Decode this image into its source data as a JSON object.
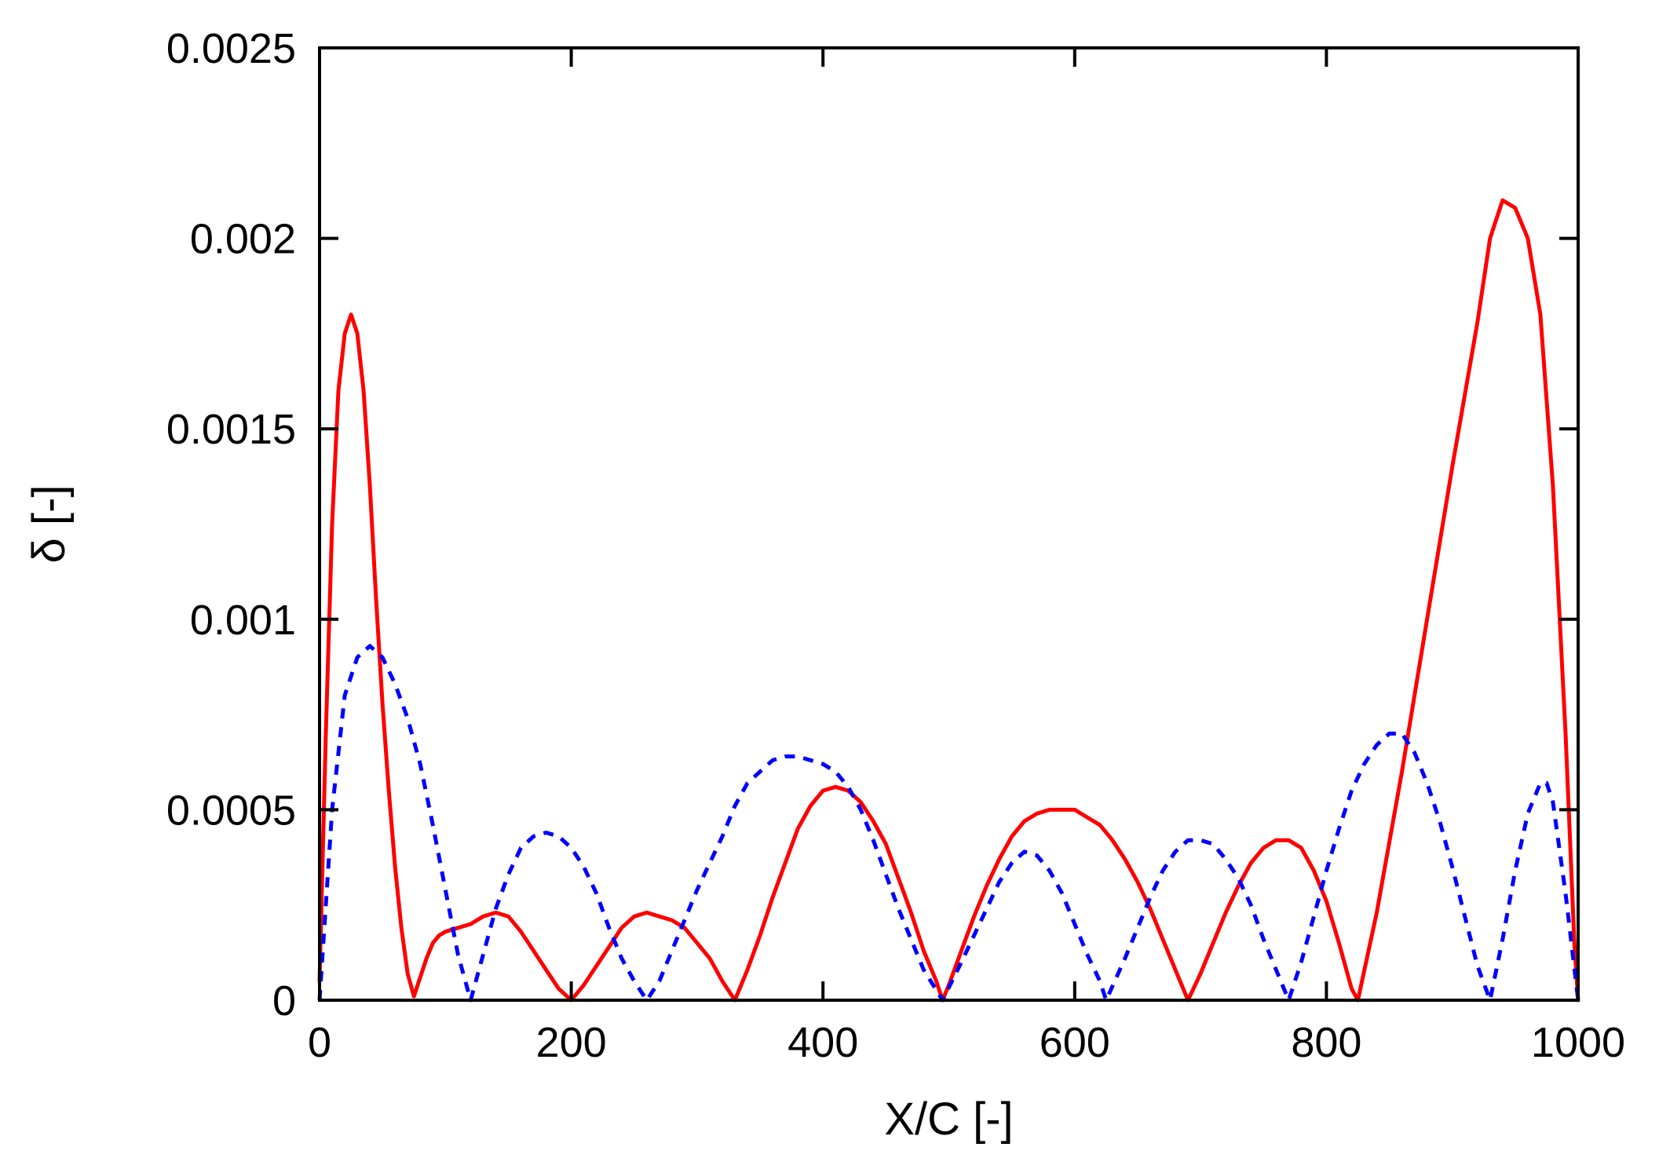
{
  "chart_data": {
    "type": "line",
    "title": "",
    "xlabel": "X/C [-]",
    "ylabel": "δ [-]",
    "xlim": [
      0,
      1000
    ],
    "ylim": [
      0,
      0.0025
    ],
    "x_ticks": [
      0,
      200,
      400,
      600,
      800,
      1000
    ],
    "x_tick_labels": [
      "0",
      "200",
      "400",
      "600",
      "800",
      "1000"
    ],
    "y_ticks": [
      0,
      0.0005,
      0.001,
      0.0015,
      0.002,
      0.0025
    ],
    "y_tick_labels": [
      "0",
      "0.0005",
      "0.001",
      "0.0015",
      "0.002",
      "0.0025"
    ],
    "grid": false,
    "legend": "none",
    "series": [
      {
        "color": "#ff0000",
        "style": "solid",
        "points": [
          [
            0,
            5e-05
          ],
          [
            5,
            0.0007
          ],
          [
            10,
            0.00125
          ],
          [
            15,
            0.0016
          ],
          [
            20,
            0.00175
          ],
          [
            25,
            0.0018
          ],
          [
            30,
            0.00175
          ],
          [
            35,
            0.0016
          ],
          [
            40,
            0.00135
          ],
          [
            45,
            0.00105
          ],
          [
            50,
            0.00078
          ],
          [
            55,
            0.00055
          ],
          [
            60,
            0.00035
          ],
          [
            65,
            0.00019
          ],
          [
            70,
            7e-05
          ],
          [
            75,
            1e-05
          ],
          [
            80,
            6e-05
          ],
          [
            85,
            0.00011
          ],
          [
            90,
            0.00015
          ],
          [
            95,
            0.00017
          ],
          [
            100,
            0.00018
          ],
          [
            110,
            0.00019
          ],
          [
            120,
            0.0002
          ],
          [
            130,
            0.00022
          ],
          [
            140,
            0.00023
          ],
          [
            150,
            0.00022
          ],
          [
            160,
            0.00018
          ],
          [
            170,
            0.00013
          ],
          [
            180,
            8e-05
          ],
          [
            190,
            3e-05
          ],
          [
            200,
            0.0
          ],
          [
            210,
            4e-05
          ],
          [
            220,
            9e-05
          ],
          [
            230,
            0.00014
          ],
          [
            240,
            0.00019
          ],
          [
            250,
            0.00022
          ],
          [
            260,
            0.00023
          ],
          [
            270,
            0.00022
          ],
          [
            280,
            0.00021
          ],
          [
            290,
            0.00019
          ],
          [
            300,
            0.00015
          ],
          [
            310,
            0.00011
          ],
          [
            320,
            5e-05
          ],
          [
            330,
            0.0
          ],
          [
            340,
            8e-05
          ],
          [
            350,
            0.00017
          ],
          [
            360,
            0.00027
          ],
          [
            370,
            0.00036
          ],
          [
            380,
            0.00045
          ],
          [
            390,
            0.00051
          ],
          [
            400,
            0.00055
          ],
          [
            410,
            0.00056
          ],
          [
            420,
            0.00055
          ],
          [
            430,
            0.00052
          ],
          [
            440,
            0.00047
          ],
          [
            450,
            0.00041
          ],
          [
            460,
            0.00032
          ],
          [
            470,
            0.00023
          ],
          [
            480,
            0.00013
          ],
          [
            490,
            5e-05
          ],
          [
            495,
            0.0
          ],
          [
            500,
            4e-05
          ],
          [
            510,
            0.00013
          ],
          [
            520,
            0.00022
          ],
          [
            530,
            0.0003
          ],
          [
            540,
            0.00037
          ],
          [
            550,
            0.00043
          ],
          [
            560,
            0.00047
          ],
          [
            570,
            0.00049
          ],
          [
            580,
            0.0005
          ],
          [
            590,
            0.0005
          ],
          [
            600,
            0.0005
          ],
          [
            610,
            0.00048
          ],
          [
            620,
            0.00046
          ],
          [
            630,
            0.00042
          ],
          [
            640,
            0.00037
          ],
          [
            650,
            0.00031
          ],
          [
            660,
            0.00024
          ],
          [
            670,
            0.00016
          ],
          [
            680,
            8e-05
          ],
          [
            690,
            0.0
          ],
          [
            700,
            7e-05
          ],
          [
            710,
            0.00015
          ],
          [
            720,
            0.00023
          ],
          [
            730,
            0.0003
          ],
          [
            740,
            0.00036
          ],
          [
            750,
            0.0004
          ],
          [
            760,
            0.00042
          ],
          [
            770,
            0.00042
          ],
          [
            780,
            0.0004
          ],
          [
            790,
            0.00034
          ],
          [
            800,
            0.00026
          ],
          [
            810,
            0.00015
          ],
          [
            820,
            3e-05
          ],
          [
            825,
            0.0
          ],
          [
            840,
            0.00023
          ],
          [
            860,
            0.0006
          ],
          [
            880,
            0.001
          ],
          [
            900,
            0.0014
          ],
          [
            920,
            0.00178
          ],
          [
            930,
            0.002
          ],
          [
            940,
            0.0021
          ],
          [
            950,
            0.00208
          ],
          [
            960,
            0.002
          ],
          [
            970,
            0.0018
          ],
          [
            980,
            0.00135
          ],
          [
            990,
            0.0007
          ],
          [
            997,
            0.00015
          ],
          [
            1000,
            0.0
          ]
        ]
      },
      {
        "color": "#0000ff",
        "style": "dashed",
        "points": [
          [
            0,
            0.0
          ],
          [
            5,
            0.00025
          ],
          [
            10,
            0.0005
          ],
          [
            20,
            0.0008
          ],
          [
            30,
            0.0009
          ],
          [
            40,
            0.00093
          ],
          [
            50,
            0.0009
          ],
          [
            60,
            0.00083
          ],
          [
            70,
            0.00074
          ],
          [
            80,
            0.00062
          ],
          [
            90,
            0.00046
          ],
          [
            100,
            0.00029
          ],
          [
            110,
            0.00012
          ],
          [
            120,
            0.0
          ],
          [
            130,
            0.00012
          ],
          [
            140,
            0.00024
          ],
          [
            150,
            0.00033
          ],
          [
            160,
            0.0004
          ],
          [
            170,
            0.00043
          ],
          [
            180,
            0.00044
          ],
          [
            190,
            0.00043
          ],
          [
            200,
            0.0004
          ],
          [
            210,
            0.00035
          ],
          [
            220,
            0.00028
          ],
          [
            230,
            0.00019
          ],
          [
            240,
            0.00011
          ],
          [
            250,
            5e-05
          ],
          [
            260,
            0.0
          ],
          [
            270,
            5e-05
          ],
          [
            280,
            0.00013
          ],
          [
            290,
            0.00021
          ],
          [
            300,
            0.00029
          ],
          [
            310,
            0.00036
          ],
          [
            320,
            0.00043
          ],
          [
            330,
            0.00051
          ],
          [
            340,
            0.00057
          ],
          [
            350,
            0.0006
          ],
          [
            360,
            0.00063
          ],
          [
            370,
            0.00064
          ],
          [
            380,
            0.00064
          ],
          [
            390,
            0.00063
          ],
          [
            400,
            0.00062
          ],
          [
            410,
            0.0006
          ],
          [
            420,
            0.00056
          ],
          [
            430,
            0.0005
          ],
          [
            440,
            0.00042
          ],
          [
            450,
            0.00033
          ],
          [
            460,
            0.00024
          ],
          [
            470,
            0.00016
          ],
          [
            480,
            8e-05
          ],
          [
            495,
            0.0
          ],
          [
            510,
            0.0001
          ],
          [
            520,
            0.00017
          ],
          [
            530,
            0.00024
          ],
          [
            540,
            0.00031
          ],
          [
            550,
            0.00036
          ],
          [
            560,
            0.00039
          ],
          [
            570,
            0.00038
          ],
          [
            580,
            0.00034
          ],
          [
            590,
            0.00028
          ],
          [
            600,
            0.0002
          ],
          [
            610,
            0.00012
          ],
          [
            620,
            5e-05
          ],
          [
            625,
            0.0
          ],
          [
            640,
            0.00011
          ],
          [
            650,
            0.00019
          ],
          [
            660,
            0.00027
          ],
          [
            670,
            0.00034
          ],
          [
            680,
            0.00039
          ],
          [
            690,
            0.00042
          ],
          [
            700,
            0.00042
          ],
          [
            710,
            0.00041
          ],
          [
            720,
            0.00037
          ],
          [
            730,
            0.00032
          ],
          [
            740,
            0.00025
          ],
          [
            750,
            0.00016
          ],
          [
            760,
            8e-05
          ],
          [
            770,
            0.0
          ],
          [
            780,
            0.0001
          ],
          [
            790,
            0.00022
          ],
          [
            800,
            0.00034
          ],
          [
            810,
            0.00045
          ],
          [
            820,
            0.00055
          ],
          [
            830,
            0.00062
          ],
          [
            840,
            0.00067
          ],
          [
            850,
            0.0007
          ],
          [
            860,
            0.0007
          ],
          [
            870,
            0.00065
          ],
          [
            880,
            0.00057
          ],
          [
            890,
            0.00047
          ],
          [
            900,
            0.00035
          ],
          [
            910,
            0.00022
          ],
          [
            920,
            9e-05
          ],
          [
            930,
            0.0
          ],
          [
            940,
            0.00016
          ],
          [
            950,
            0.00034
          ],
          [
            960,
            0.00049
          ],
          [
            970,
            0.00057
          ],
          [
            975,
            0.00057
          ],
          [
            980,
            0.00052
          ],
          [
            990,
            0.00028
          ],
          [
            1000,
            0.0
          ]
        ]
      }
    ]
  }
}
